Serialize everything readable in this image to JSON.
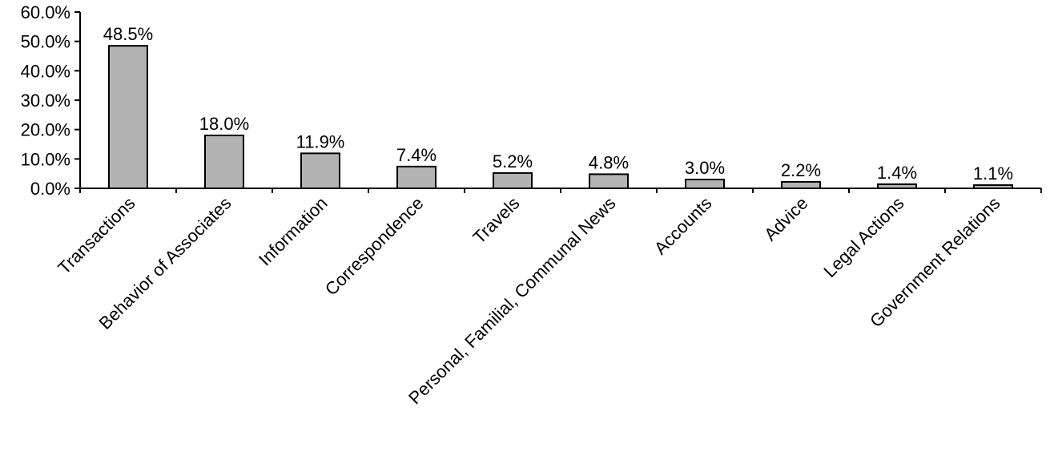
{
  "chart_data": {
    "type": "bar",
    "categories": [
      "Transactions",
      "Behavior of Associates",
      "Information",
      "Correspondence",
      "Travels",
      "Personal, Familial, Communal News",
      "Accounts",
      "Advice",
      "Legal Actions",
      "Government Relations"
    ],
    "values": [
      48.5,
      18.0,
      11.9,
      7.4,
      5.2,
      4.8,
      3.0,
      2.2,
      1.4,
      1.1
    ],
    "data_labels": [
      "48.5%",
      "18.0%",
      "11.9%",
      "7.4%",
      "5.2%",
      "4.8%",
      "3.0%",
      "2.2%",
      "1.4%",
      "1.1%"
    ],
    "y_ticks": [
      0,
      10,
      20,
      30,
      40,
      50,
      60
    ],
    "y_tick_labels": [
      "0.0%",
      "10.0%",
      "20.0%",
      "30.0%",
      "40.0%",
      "50.0%",
      "60.0%"
    ],
    "ylim": [
      0,
      60
    ],
    "grid": false,
    "legend": "none",
    "bar_color": "#b3b3b3",
    "bar_stroke": "#000000",
    "title": "",
    "xlabel": "",
    "ylabel": ""
  }
}
